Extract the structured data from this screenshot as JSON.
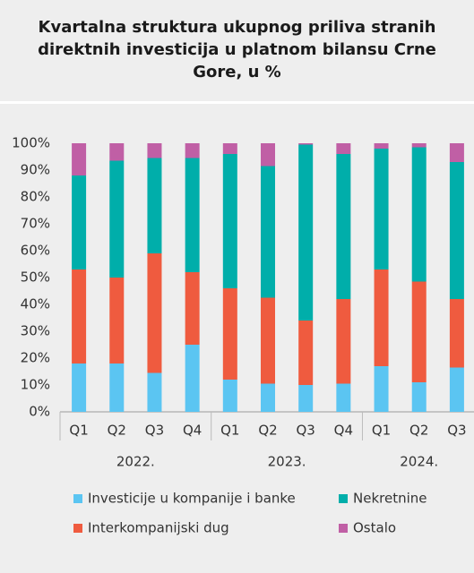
{
  "chart_data": {
    "type": "stacked_bar",
    "title": "Kvartalna struktura ukupnog priliva stranih direktnih investicija u platnom bilansu Crne Gore, u %",
    "groups": [
      {
        "label": "2022.",
        "categories": [
          "Q1",
          "Q2",
          "Q3",
          "Q4"
        ]
      },
      {
        "label": "2023.",
        "categories": [
          "Q1",
          "Q2",
          "Q3",
          "Q4"
        ]
      },
      {
        "label": "2024.",
        "categories": [
          "Q1",
          "Q2",
          "Q3"
        ]
      }
    ],
    "series": [
      {
        "name": "Investicije u kompanije i banke",
        "color": "#5bc5f2",
        "values": [
          18,
          18,
          14.5,
          25,
          12,
          10.5,
          10,
          10.5,
          17,
          11,
          16.5
        ]
      },
      {
        "name": "Interkompanijski dug",
        "color": "#ef5b3f",
        "values": [
          35,
          32,
          44.5,
          27,
          34,
          32,
          24,
          31.5,
          36,
          37.5,
          25.5
        ]
      },
      {
        "name": "Nekretnine",
        "color": "#00aeaa",
        "values": [
          35,
          43.5,
          35.5,
          42.5,
          50,
          49,
          65.5,
          54,
          45,
          50,
          51
        ]
      },
      {
        "name": "Ostalo",
        "color": "#c05fa5",
        "values": [
          12,
          6.5,
          5.5,
          5.5,
          4,
          8.5,
          0.5,
          4,
          2,
          1.5,
          7
        ]
      }
    ],
    "ylim": [
      0,
      100
    ],
    "yticks": [
      {
        "value": 0,
        "label": "0%"
      },
      {
        "value": 10,
        "label": "10%"
      },
      {
        "value": 20,
        "label": "20%"
      },
      {
        "value": 30,
        "label": "30%"
      },
      {
        "value": 40,
        "label": "40%"
      },
      {
        "value": 50,
        "label": "50%"
      },
      {
        "value": 60,
        "label": "60%"
      },
      {
        "value": 70,
        "label": "70%"
      },
      {
        "value": 80,
        "label": "80%"
      },
      {
        "value": 90,
        "label": "90%"
      },
      {
        "value": 100,
        "label": "100%"
      }
    ],
    "grid": false,
    "legend": "bottom"
  }
}
